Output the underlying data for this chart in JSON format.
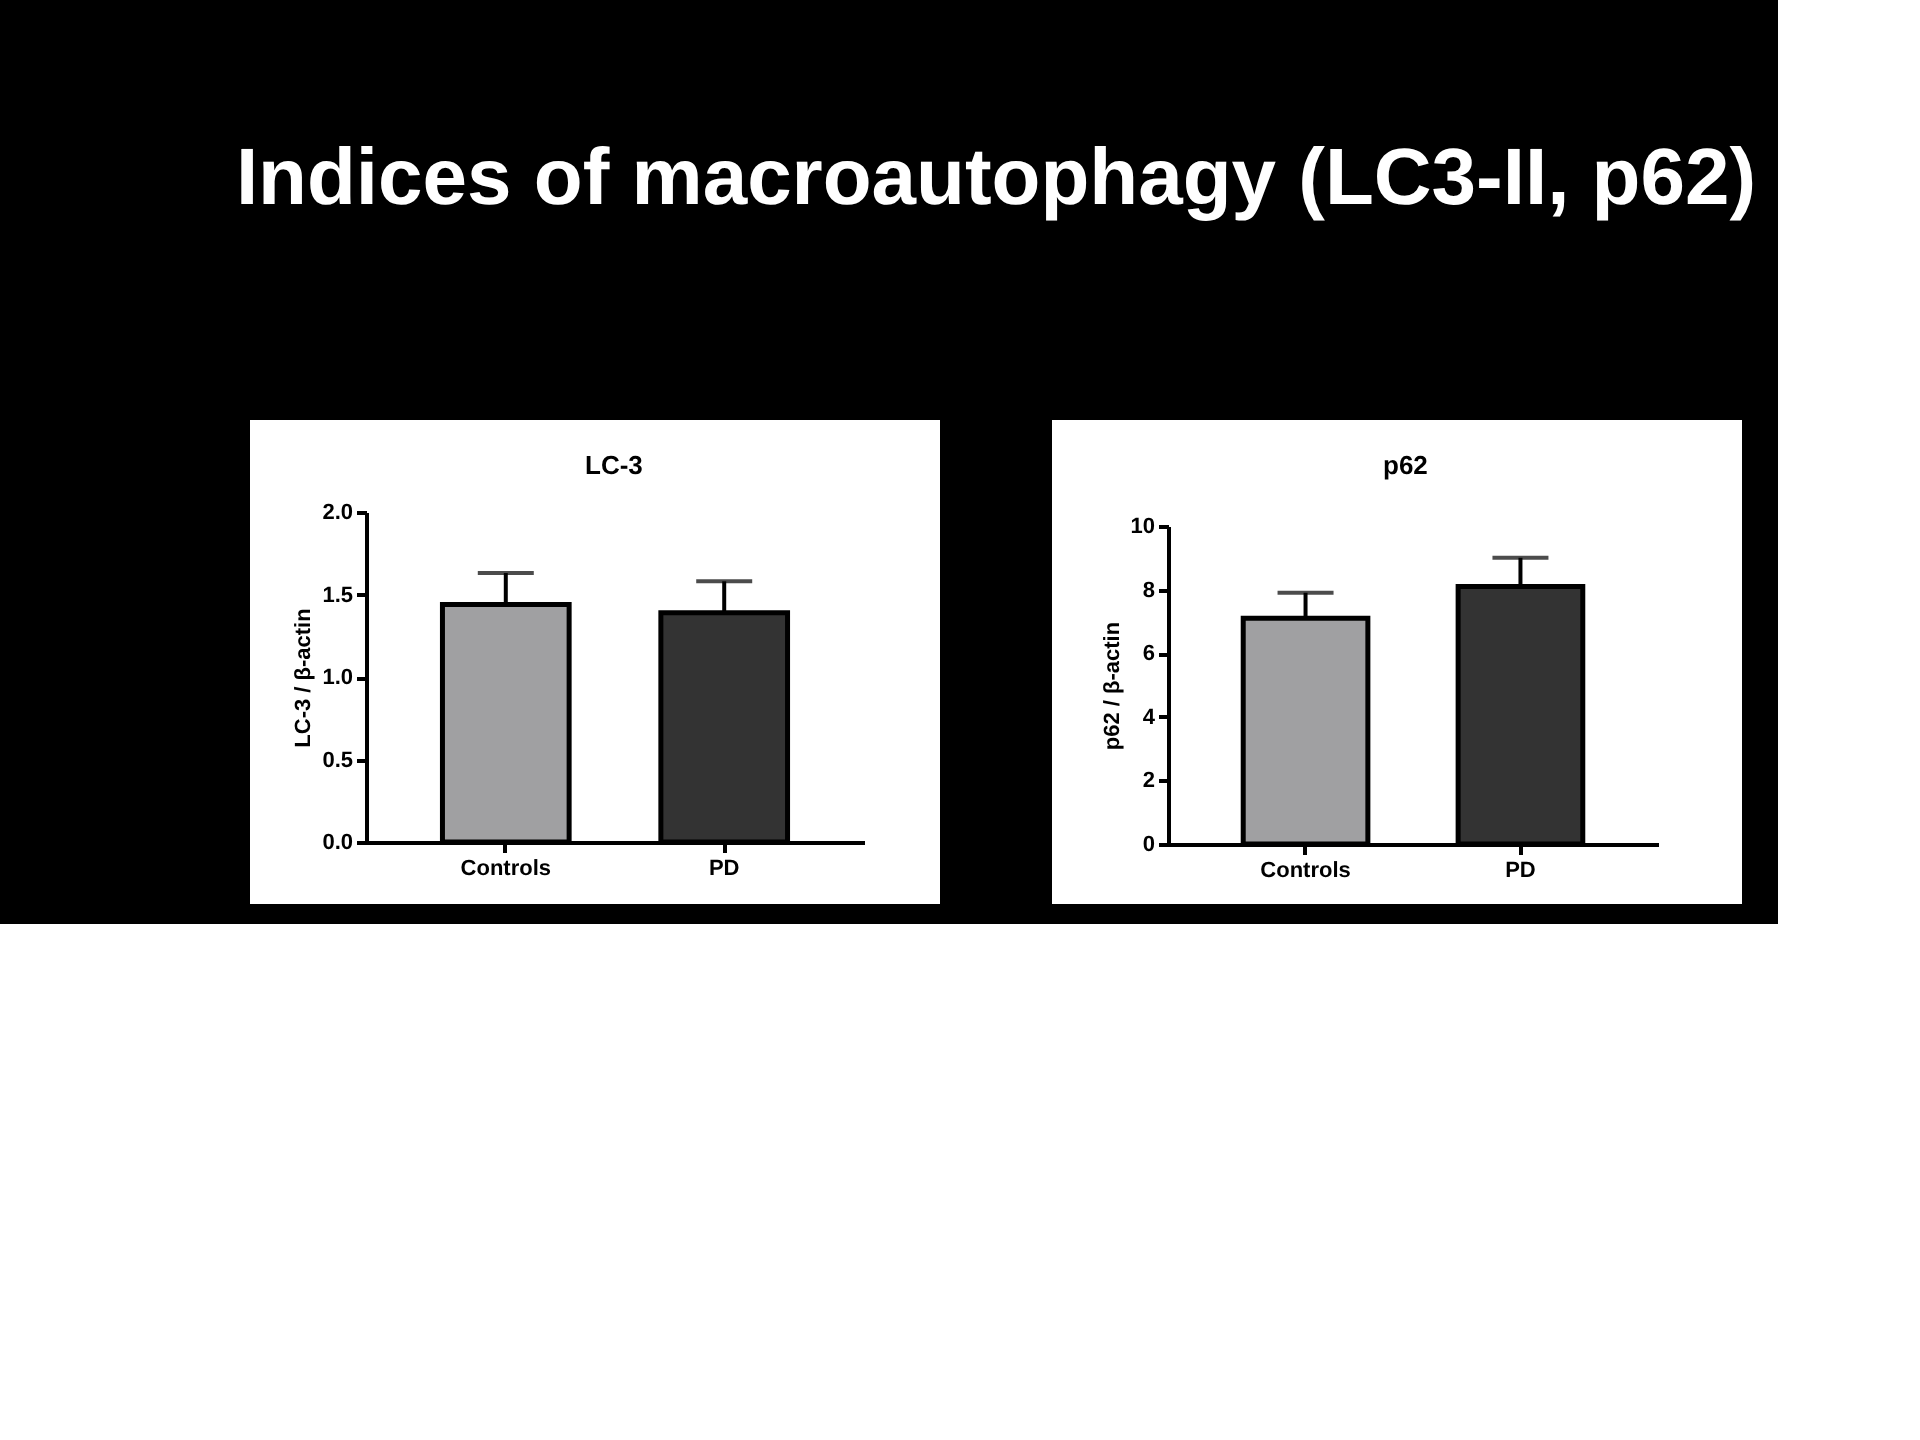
{
  "chart_data": [
    {
      "type": "bar",
      "title": "LC-3",
      "ylabel": "LC-3 / β-actin",
      "categories": [
        "Controls",
        "PD"
      ],
      "series": [
        {
          "values": [
            1.44,
            1.39
          ],
          "colors": [
            "#a0a0a2",
            "#333333"
          ],
          "errors": [
            0.19,
            0.19
          ]
        }
      ],
      "ylim": [
        0,
        2.0
      ],
      "yticks": [
        {
          "value": 0,
          "label": "0.0"
        },
        {
          "value": 0.5,
          "label": "0.5"
        },
        {
          "value": 1,
          "label": "1.0"
        },
        {
          "value": 1.5,
          "label": "1.5"
        },
        {
          "value": 2,
          "label": "2.0"
        }
      ],
      "annotations": [
        "Indices of macroautophagy (LC3-II, p62)"
      ]
    },
    {
      "type": "bar",
      "title": "p62",
      "ylabel": "p62 / β-actin",
      "categories": [
        "Controls",
        "PD"
      ],
      "series": [
        {
          "values": [
            7.1,
            8.1
          ],
          "colors": [
            "#a0a0a2",
            "#333333"
          ],
          "errors": [
            0.8,
            0.9
          ]
        }
      ],
      "ylim": [
        0,
        10
      ],
      "yticks": [
        0,
        2,
        4,
        6,
        8,
        10
      ]
    }
  ]
}
